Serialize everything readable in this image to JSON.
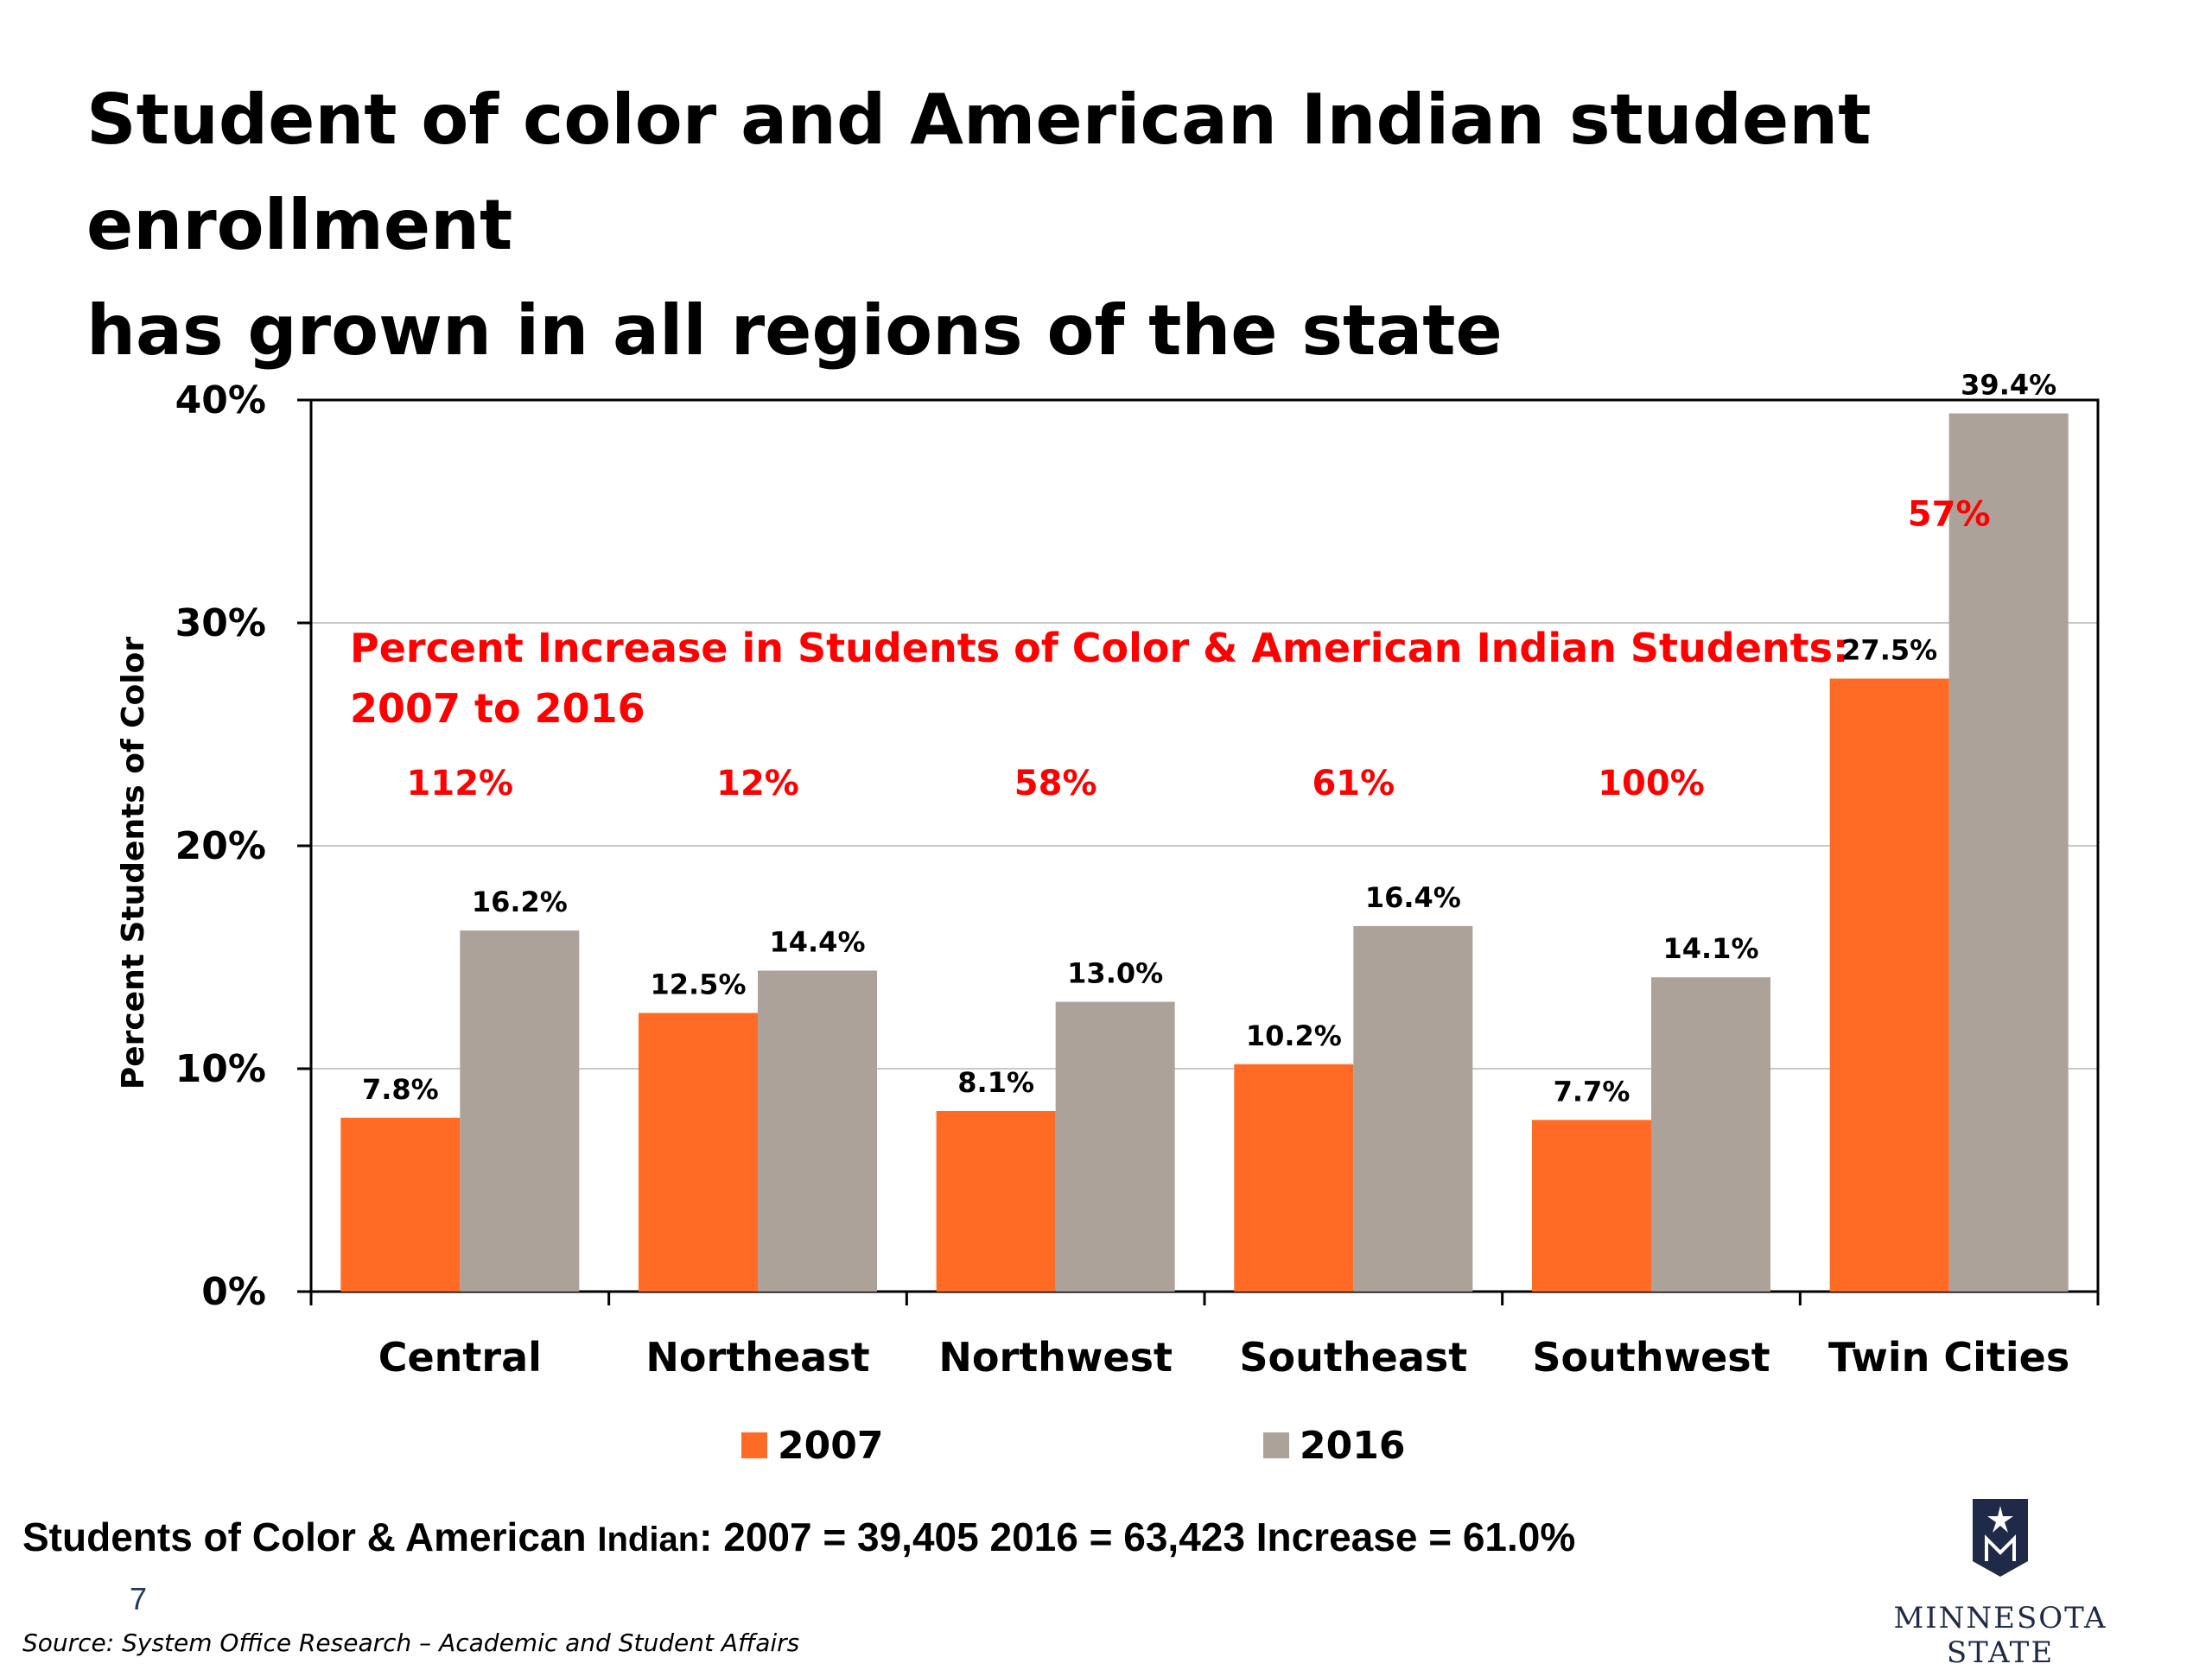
{
  "title_line1": "Student of color and American Indian student enrollment",
  "title_line2": "has grown in all regions of the state",
  "chart_data": {
    "type": "bar",
    "ylabel": "Percent Students of Color",
    "ylim": [
      0,
      40
    ],
    "yticks": [
      "0%",
      "10%",
      "20%",
      "30%",
      "40%"
    ],
    "grid": true,
    "legend_position": "bottom",
    "categories": [
      "Central",
      "Northeast",
      "Northwest",
      "Southeast",
      "Southwest",
      "Twin Cities"
    ],
    "series": [
      {
        "name": "2007",
        "color": "#ff6a24",
        "values": [
          7.8,
          12.5,
          8.1,
          10.2,
          7.7,
          27.5
        ],
        "labels": [
          "7.8%",
          "12.5%",
          "8.1%",
          "10.2%",
          "7.7%",
          "27.5%"
        ]
      },
      {
        "name": "2016",
        "color": "#aca299",
        "values": [
          16.2,
          14.4,
          13.0,
          16.4,
          14.1,
          39.4
        ],
        "labels": [
          "16.2%",
          "14.4%",
          "13.0%",
          "16.4%",
          "14.1%",
          "39.4%"
        ]
      }
    ],
    "annotation_title_line1": "Percent Increase in Students of Color & American Indian Students:",
    "annotation_title_line2": "2007 to 2016",
    "increase_labels": [
      "112%",
      "12%",
      "58%",
      "61%",
      "100%",
      "57%"
    ],
    "annotation_color": "#ff0000"
  },
  "footer": {
    "stats_main": "Students of Color & American ",
    "stats_small": "Indian",
    "stats_rest": ":  2007 = 39,405   2016 = 63,423  Increase = 61.0%",
    "page_number": "7",
    "source": "Source: System Office Research – Academic and Student Affairs",
    "logo_text": "MINNESOTA STATE"
  }
}
